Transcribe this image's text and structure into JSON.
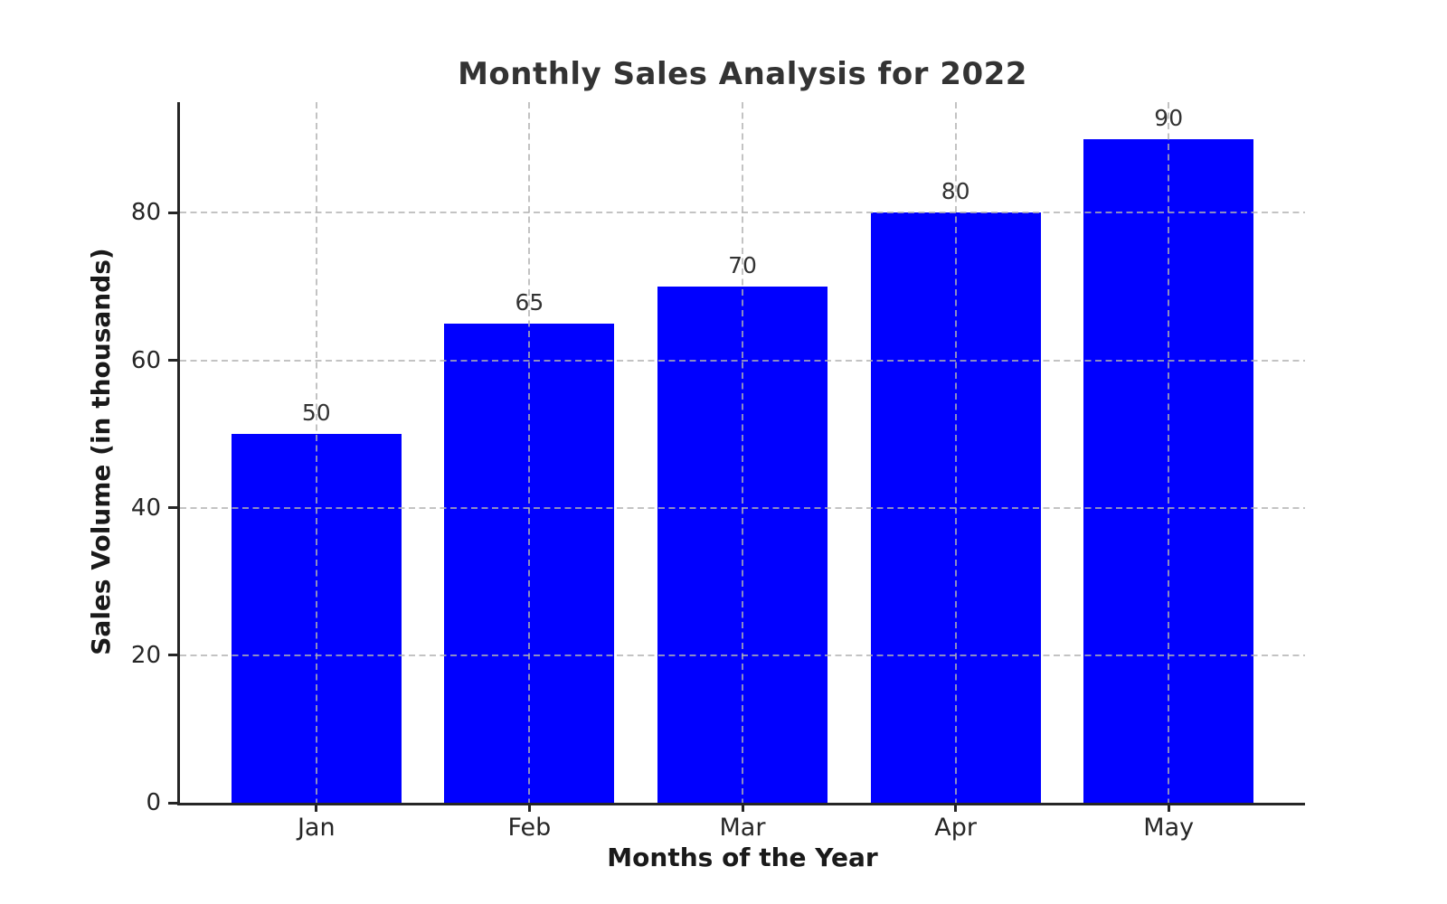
{
  "chart_data": {
    "type": "bar",
    "title": "Monthly Sales Analysis for 2022",
    "xlabel": "Months of the Year",
    "ylabel": "Sales Volume (in thousands)",
    "categories": [
      "Jan",
      "Feb",
      "Mar",
      "Apr",
      "May"
    ],
    "values": [
      50,
      65,
      70,
      80,
      90
    ],
    "ylim": [
      0,
      95
    ],
    "yticks": [
      0,
      20,
      40,
      60,
      80
    ],
    "bar_color": "#0000ff",
    "grid": "dashed, light gray, horizontal at yticks and vertical at bar centers",
    "legend": "none",
    "colors": {
      "bar": "#0000ff",
      "title": "#333333",
      "axis_label": "#1a1a1a",
      "tick_label": "#262626",
      "spine": "#262626",
      "gridline": "#cccccc",
      "value_label": "#333333",
      "background": "#ffffff"
    }
  }
}
